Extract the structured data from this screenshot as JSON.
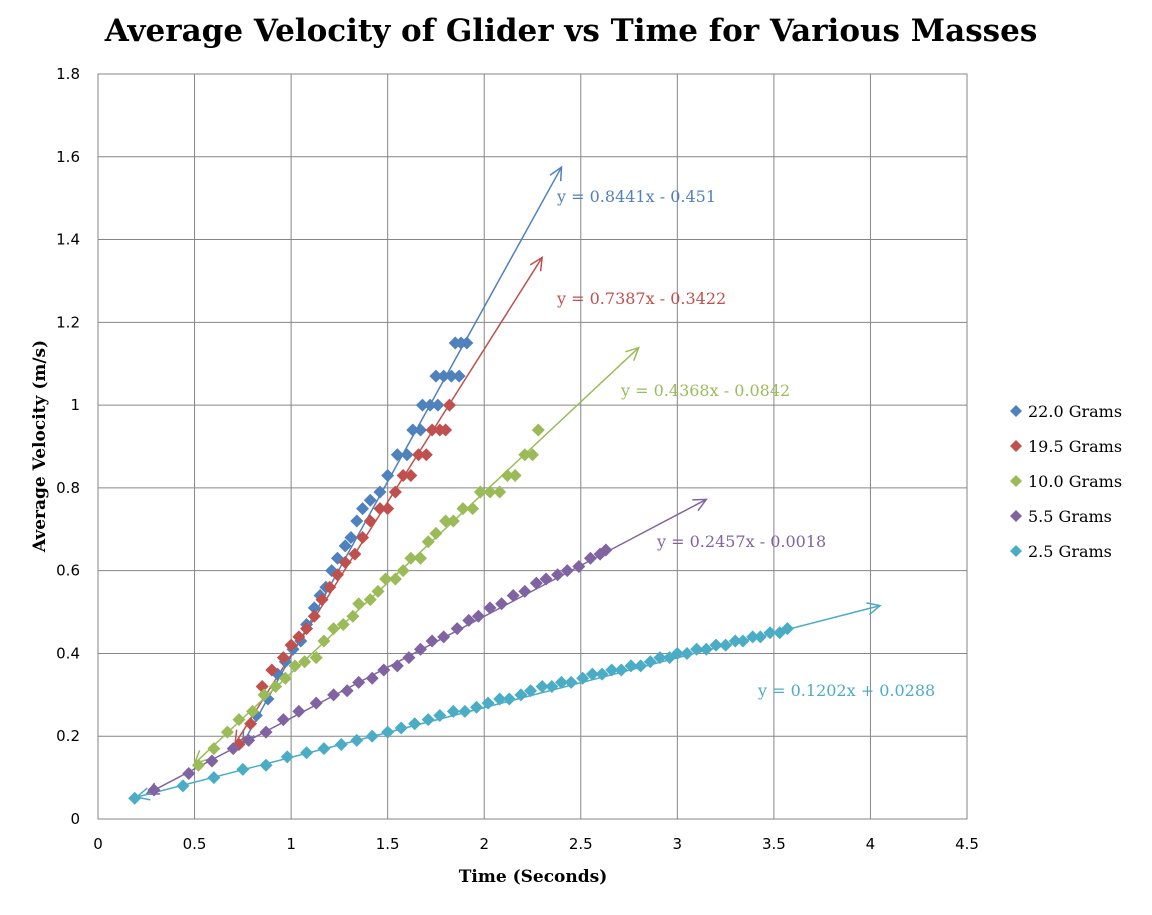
{
  "chart_data": {
    "type": "scatter",
    "title": "Average Velocity of Glider vs Time for Various Masses",
    "xlabel": "Time (Seconds)",
    "ylabel": "Average Velocity (m/s)",
    "xlim": [
      0,
      4.5
    ],
    "ylim": [
      0,
      1.8
    ],
    "x_ticks": [
      "0",
      "0.5",
      "1",
      "1.5",
      "2",
      "2.5",
      "3",
      "3.5",
      "4",
      "4.5"
    ],
    "y_ticks": [
      "0",
      "0.2",
      "0.4",
      "0.6",
      "0.8",
      "1",
      "1.2",
      "1.4",
      "1.6",
      "1.8"
    ],
    "grid": true,
    "legend_position": "right",
    "series": [
      {
        "name": "22.0 Grams",
        "color": "#4F81BD",
        "trendline": {
          "equation": "y = 0.8441x - 0.451",
          "slope": 0.8441,
          "intercept": -0.451,
          "x_range": [
            0.75,
            2.4
          ]
        },
        "points": [
          [
            0.82,
            0.25
          ],
          [
            0.88,
            0.29
          ],
          [
            0.93,
            0.35
          ],
          [
            0.97,
            0.38
          ],
          [
            1.01,
            0.41
          ],
          [
            1.05,
            0.43
          ],
          [
            1.08,
            0.47
          ],
          [
            1.12,
            0.51
          ],
          [
            1.15,
            0.54
          ],
          [
            1.18,
            0.56
          ],
          [
            1.21,
            0.6
          ],
          [
            1.24,
            0.63
          ],
          [
            1.28,
            0.66
          ],
          [
            1.31,
            0.68
          ],
          [
            1.34,
            0.72
          ],
          [
            1.37,
            0.75
          ],
          [
            1.41,
            0.77
          ],
          [
            1.46,
            0.79
          ],
          [
            1.5,
            0.83
          ],
          [
            1.55,
            0.88
          ],
          [
            1.6,
            0.88
          ],
          [
            1.63,
            0.94
          ],
          [
            1.67,
            0.94
          ],
          [
            1.68,
            1.0
          ],
          [
            1.72,
            1.0
          ],
          [
            1.76,
            1.0
          ],
          [
            1.75,
            1.07
          ],
          [
            1.79,
            1.07
          ],
          [
            1.83,
            1.07
          ],
          [
            1.87,
            1.07
          ],
          [
            1.85,
            1.15
          ],
          [
            1.88,
            1.15
          ],
          [
            1.91,
            1.15
          ]
        ]
      },
      {
        "name": "19.5 Grams",
        "color": "#C0504D",
        "trendline": {
          "equation": "y = 0.7387x - 0.3422",
          "slope": 0.7387,
          "intercept": -0.3422,
          "x_range": [
            0.71,
            2.3
          ]
        },
        "points": [
          [
            0.73,
            0.18
          ],
          [
            0.79,
            0.23
          ],
          [
            0.85,
            0.32
          ],
          [
            0.9,
            0.36
          ],
          [
            0.96,
            0.39
          ],
          [
            1.0,
            0.42
          ],
          [
            1.04,
            0.44
          ],
          [
            1.08,
            0.46
          ],
          [
            1.12,
            0.49
          ],
          [
            1.16,
            0.53
          ],
          [
            1.2,
            0.56
          ],
          [
            1.24,
            0.59
          ],
          [
            1.28,
            0.62
          ],
          [
            1.33,
            0.64
          ],
          [
            1.37,
            0.68
          ],
          [
            1.41,
            0.72
          ],
          [
            1.46,
            0.75
          ],
          [
            1.5,
            0.75
          ],
          [
            1.54,
            0.79
          ],
          [
            1.58,
            0.83
          ],
          [
            1.62,
            0.83
          ],
          [
            1.66,
            0.88
          ],
          [
            1.7,
            0.88
          ],
          [
            1.73,
            0.94
          ],
          [
            1.77,
            0.94
          ],
          [
            1.8,
            0.94
          ],
          [
            1.82,
            1.0
          ]
        ]
      },
      {
        "name": "10.0 Grams",
        "color": "#9BBB59",
        "trendline": {
          "equation": "y = 0.4368x - 0.0842",
          "slope": 0.4368,
          "intercept": -0.0842,
          "x_range": [
            0.5,
            2.8
          ]
        },
        "points": [
          [
            0.52,
            0.13
          ],
          [
            0.6,
            0.17
          ],
          [
            0.67,
            0.21
          ],
          [
            0.73,
            0.24
          ],
          [
            0.8,
            0.26
          ],
          [
            0.86,
            0.3
          ],
          [
            0.92,
            0.32
          ],
          [
            0.97,
            0.34
          ],
          [
            1.02,
            0.37
          ],
          [
            1.07,
            0.38
          ],
          [
            1.13,
            0.39
          ],
          [
            1.17,
            0.43
          ],
          [
            1.22,
            0.46
          ],
          [
            1.27,
            0.47
          ],
          [
            1.32,
            0.49
          ],
          [
            1.35,
            0.52
          ],
          [
            1.41,
            0.53
          ],
          [
            1.45,
            0.55
          ],
          [
            1.49,
            0.58
          ],
          [
            1.54,
            0.58
          ],
          [
            1.58,
            0.6
          ],
          [
            1.62,
            0.63
          ],
          [
            1.67,
            0.63
          ],
          [
            1.71,
            0.67
          ],
          [
            1.75,
            0.69
          ],
          [
            1.8,
            0.72
          ],
          [
            1.84,
            0.72
          ],
          [
            1.89,
            0.75
          ],
          [
            1.94,
            0.75
          ],
          [
            1.98,
            0.79
          ],
          [
            2.03,
            0.79
          ],
          [
            2.08,
            0.79
          ],
          [
            2.12,
            0.83
          ],
          [
            2.16,
            0.83
          ],
          [
            2.21,
            0.88
          ],
          [
            2.25,
            0.88
          ],
          [
            2.28,
            0.94
          ]
        ]
      },
      {
        "name": "5.5 Grams",
        "color": "#8064A2",
        "trendline": {
          "equation": "y = 0.2457x - 0.0018",
          "slope": 0.2457,
          "intercept": -0.0018,
          "x_range": [
            0.25,
            3.15
          ]
        },
        "points": [
          [
            0.29,
            0.07
          ],
          [
            0.47,
            0.11
          ],
          [
            0.59,
            0.14
          ],
          [
            0.7,
            0.17
          ],
          [
            0.78,
            0.19
          ],
          [
            0.87,
            0.21
          ],
          [
            0.96,
            0.24
          ],
          [
            1.04,
            0.26
          ],
          [
            1.13,
            0.28
          ],
          [
            1.22,
            0.3
          ],
          [
            1.29,
            0.31
          ],
          [
            1.35,
            0.33
          ],
          [
            1.42,
            0.34
          ],
          [
            1.48,
            0.36
          ],
          [
            1.55,
            0.37
          ],
          [
            1.61,
            0.39
          ],
          [
            1.67,
            0.41
          ],
          [
            1.73,
            0.43
          ],
          [
            1.79,
            0.44
          ],
          [
            1.86,
            0.46
          ],
          [
            1.92,
            0.48
          ],
          [
            1.97,
            0.49
          ],
          [
            2.03,
            0.51
          ],
          [
            2.09,
            0.52
          ],
          [
            2.15,
            0.54
          ],
          [
            2.21,
            0.55
          ],
          [
            2.27,
            0.57
          ],
          [
            2.32,
            0.58
          ],
          [
            2.38,
            0.59
          ],
          [
            2.43,
            0.6
          ],
          [
            2.49,
            0.61
          ],
          [
            2.55,
            0.63
          ],
          [
            2.6,
            0.64
          ],
          [
            2.63,
            0.65
          ]
        ]
      },
      {
        "name": "2.5 Grams",
        "color": "#4BACC6",
        "trendline": {
          "equation": "y = 0.1202x + 0.0288",
          "slope": 0.1202,
          "intercept": 0.0288,
          "x_range": [
            0.2,
            4.05
          ]
        },
        "points": [
          [
            0.19,
            0.05
          ],
          [
            0.44,
            0.08
          ],
          [
            0.6,
            0.1
          ],
          [
            0.75,
            0.12
          ],
          [
            0.87,
            0.13
          ],
          [
            0.98,
            0.15
          ],
          [
            1.08,
            0.16
          ],
          [
            1.17,
            0.17
          ],
          [
            1.26,
            0.18
          ],
          [
            1.34,
            0.19
          ],
          [
            1.42,
            0.2
          ],
          [
            1.5,
            0.21
          ],
          [
            1.57,
            0.22
          ],
          [
            1.64,
            0.23
          ],
          [
            1.71,
            0.24
          ],
          [
            1.77,
            0.25
          ],
          [
            1.84,
            0.26
          ],
          [
            1.9,
            0.26
          ],
          [
            1.96,
            0.27
          ],
          [
            2.02,
            0.28
          ],
          [
            2.08,
            0.29
          ],
          [
            2.13,
            0.29
          ],
          [
            2.19,
            0.3
          ],
          [
            2.24,
            0.31
          ],
          [
            2.3,
            0.32
          ],
          [
            2.35,
            0.32
          ],
          [
            2.4,
            0.33
          ],
          [
            2.45,
            0.33
          ],
          [
            2.51,
            0.34
          ],
          [
            2.56,
            0.35
          ],
          [
            2.61,
            0.35
          ],
          [
            2.66,
            0.36
          ],
          [
            2.71,
            0.36
          ],
          [
            2.76,
            0.37
          ],
          [
            2.81,
            0.37
          ],
          [
            2.86,
            0.38
          ],
          [
            2.91,
            0.39
          ],
          [
            2.96,
            0.39
          ],
          [
            3.0,
            0.4
          ],
          [
            3.05,
            0.4
          ],
          [
            3.1,
            0.41
          ],
          [
            3.15,
            0.41
          ],
          [
            3.2,
            0.42
          ],
          [
            3.25,
            0.42
          ],
          [
            3.3,
            0.43
          ],
          [
            3.34,
            0.43
          ],
          [
            3.39,
            0.44
          ],
          [
            3.43,
            0.44
          ],
          [
            3.48,
            0.45
          ],
          [
            3.53,
            0.45
          ],
          [
            3.57,
            0.46
          ]
        ]
      }
    ]
  }
}
